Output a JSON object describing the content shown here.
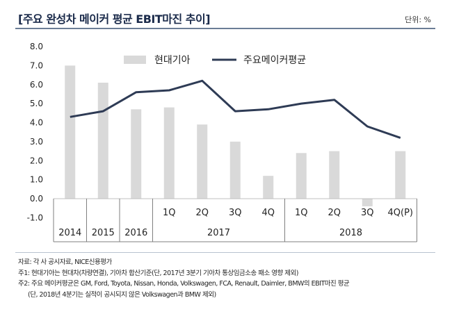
{
  "header": {
    "title": "[주요 완성차 메이커 평균 EBIT마진 추이]",
    "unit": "단위: %"
  },
  "colors": {
    "bar": "#d9d9d9",
    "line": "#2e3b55",
    "rule": "#6b7d96"
  },
  "chart_data": {
    "type": "bar+line",
    "ylim": [
      -1.0,
      8.0
    ],
    "yticks": [
      "8.0",
      "7.0",
      "6.0",
      "5.0",
      "4.0",
      "3.0",
      "2.0",
      "1.0",
      "0.0",
      "-1.0"
    ],
    "categories": [
      "2014",
      "2015",
      "2016",
      "1Q",
      "2Q",
      "3Q",
      "4Q",
      "1Q",
      "2Q",
      "3Q",
      "4Q(P)"
    ],
    "groups": [
      {
        "label": "2014",
        "span": [
          0,
          0
        ]
      },
      {
        "label": "2015",
        "span": [
          1,
          1
        ]
      },
      {
        "label": "2016",
        "span": [
          2,
          2
        ]
      },
      {
        "label": "2017",
        "span": [
          3,
          6
        ]
      },
      {
        "label": "2018",
        "span": [
          7,
          10
        ]
      }
    ],
    "series": [
      {
        "name": "현대기아",
        "type": "bar",
        "values": [
          7.0,
          6.1,
          4.7,
          4.8,
          3.9,
          3.0,
          1.2,
          2.4,
          2.5,
          -0.4,
          2.5
        ]
      },
      {
        "name": "주요메이커평균",
        "type": "line",
        "values": [
          4.3,
          4.6,
          5.6,
          5.7,
          6.2,
          4.6,
          4.7,
          5.0,
          5.2,
          3.8,
          3.2
        ]
      }
    ],
    "grid": false,
    "legend": "top"
  },
  "notes": [
    "자료: 각 사 공시자료, NICE신용평가",
    "주1: 현대기아는 현대차(차량연결), 기아차 합산기준(단, 2017년 3분기 기아차 통상임금소송 패소 영향 제외)",
    "주2: 주요 메이커평균은 GM, Ford, Toyota, Nissan, Honda, Volkswagen, FCA, Renault, Daimler, BMW의 EBIT마진 평균",
    "(단, 2018년 4분기는 실적이 공시되지 않은 Volkswagen과 BMW 제외)"
  ]
}
